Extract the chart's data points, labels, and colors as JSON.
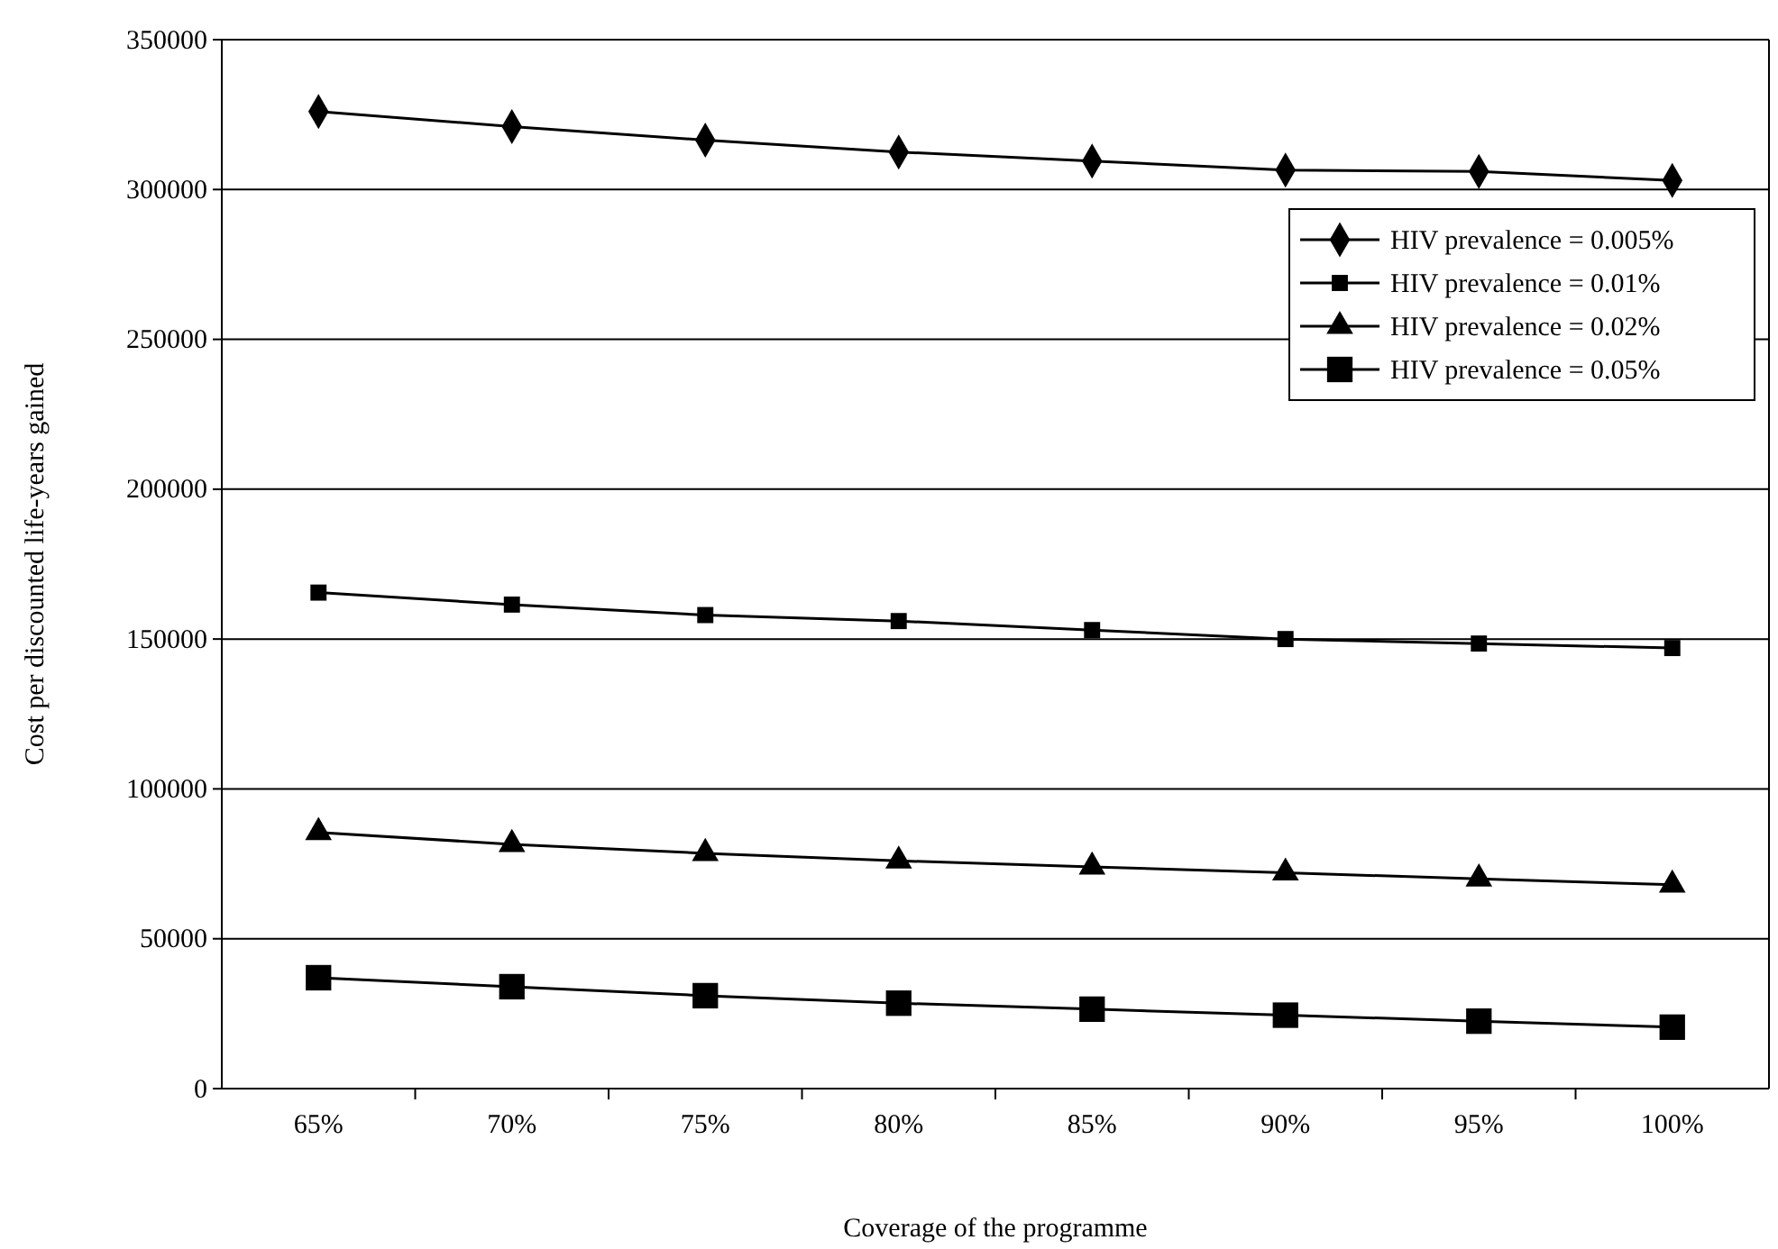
{
  "chart_data": {
    "type": "line",
    "xlabel": "Coverage of the programme",
    "ylabel": "Cost per discounted life-years gained",
    "categories": [
      "65%",
      "70%",
      "75%",
      "80%",
      "85%",
      "90%",
      "95%",
      "100%"
    ],
    "series": [
      {
        "name": "HIV prevalence = 0.005%",
        "color": "#000000",
        "marker": "diamond",
        "values": [
          326000,
          321000,
          316500,
          312500,
          309500,
          306500,
          306000,
          303000
        ]
      },
      {
        "name": "HIV prevalence = 0.01%",
        "color": "#000000",
        "marker": "square",
        "values": [
          165500,
          161500,
          158000,
          156000,
          153000,
          150000,
          148500,
          147000
        ]
      },
      {
        "name": "HIV prevalence = 0.02%",
        "color": "#000000",
        "marker": "triangle",
        "values": [
          85500,
          81500,
          78500,
          76000,
          74000,
          72000,
          70000,
          68000
        ]
      },
      {
        "name": "HIV prevalence = 0.05%",
        "color": "#000000",
        "marker": "square",
        "values": [
          37000,
          34000,
          31000,
          28500,
          26500,
          24500,
          22500,
          20500
        ]
      }
    ],
    "ylim": [
      0,
      350000
    ],
    "yticks": [
      0,
      50000,
      100000,
      150000,
      200000,
      250000,
      300000,
      350000
    ],
    "grid": "y",
    "legend": "top right",
    "line_style": "solid"
  }
}
